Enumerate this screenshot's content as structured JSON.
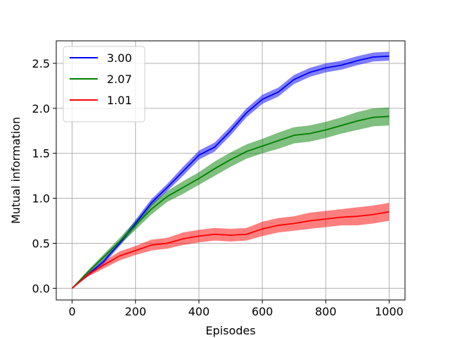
{
  "chart_data": {
    "type": "line",
    "title": "",
    "xlabel": "Episodes",
    "ylabel": "Mutual information",
    "xlim": [
      -50,
      1050
    ],
    "ylim": [
      -0.13,
      2.75
    ],
    "xticks": [
      0,
      200,
      400,
      600,
      800,
      1000
    ],
    "yticks": [
      0.0,
      0.5,
      1.0,
      1.5,
      2.0,
      2.5
    ],
    "xtick_labels": [
      "0",
      "200",
      "400",
      "600",
      "800",
      "1000"
    ],
    "ytick_labels": [
      "0.0",
      "0.5",
      "1.0",
      "1.5",
      "2.0",
      "2.5"
    ],
    "grid": true,
    "legend_position": "top-left",
    "series": [
      {
        "name": "3.00",
        "color": "#0000ff",
        "x": [
          0,
          50,
          100,
          150,
          200,
          250,
          300,
          350,
          400,
          450,
          500,
          550,
          600,
          650,
          700,
          750,
          800,
          850,
          900,
          950,
          1000
        ],
        "y": [
          0.0,
          0.15,
          0.3,
          0.5,
          0.72,
          0.95,
          1.12,
          1.3,
          1.48,
          1.57,
          1.75,
          1.95,
          2.1,
          2.18,
          2.32,
          2.4,
          2.45,
          2.48,
          2.53,
          2.57,
          2.58
        ],
        "band": [
          0.0,
          0.02,
          0.03,
          0.03,
          0.04,
          0.04,
          0.04,
          0.05,
          0.05,
          0.05,
          0.05,
          0.05,
          0.05,
          0.05,
          0.05,
          0.05,
          0.05,
          0.05,
          0.05,
          0.05,
          0.05
        ]
      },
      {
        "name": "2.07",
        "color": "#008000",
        "x": [
          0,
          50,
          100,
          150,
          200,
          250,
          300,
          350,
          400,
          450,
          500,
          550,
          600,
          650,
          700,
          750,
          800,
          850,
          900,
          950,
          1000
        ],
        "y": [
          0.0,
          0.18,
          0.35,
          0.52,
          0.7,
          0.88,
          1.02,
          1.12,
          1.22,
          1.33,
          1.43,
          1.52,
          1.58,
          1.64,
          1.7,
          1.72,
          1.76,
          1.81,
          1.86,
          1.9,
          1.91
        ],
        "band": [
          0.0,
          0.02,
          0.03,
          0.04,
          0.05,
          0.06,
          0.06,
          0.07,
          0.07,
          0.08,
          0.08,
          0.08,
          0.08,
          0.09,
          0.09,
          0.09,
          0.09,
          0.09,
          0.1,
          0.1,
          0.1
        ]
      },
      {
        "name": "1.01",
        "color": "#ff0000",
        "x": [
          0,
          50,
          100,
          150,
          200,
          250,
          300,
          350,
          400,
          450,
          500,
          550,
          600,
          650,
          700,
          750,
          800,
          850,
          900,
          950,
          1000
        ],
        "y": [
          0.0,
          0.15,
          0.26,
          0.36,
          0.42,
          0.48,
          0.5,
          0.55,
          0.58,
          0.6,
          0.59,
          0.6,
          0.66,
          0.7,
          0.72,
          0.75,
          0.77,
          0.79,
          0.8,
          0.82,
          0.85
        ],
        "band": [
          0.0,
          0.02,
          0.04,
          0.05,
          0.05,
          0.06,
          0.06,
          0.07,
          0.07,
          0.07,
          0.07,
          0.07,
          0.08,
          0.08,
          0.08,
          0.09,
          0.09,
          0.09,
          0.1,
          0.1,
          0.1
        ]
      }
    ]
  }
}
